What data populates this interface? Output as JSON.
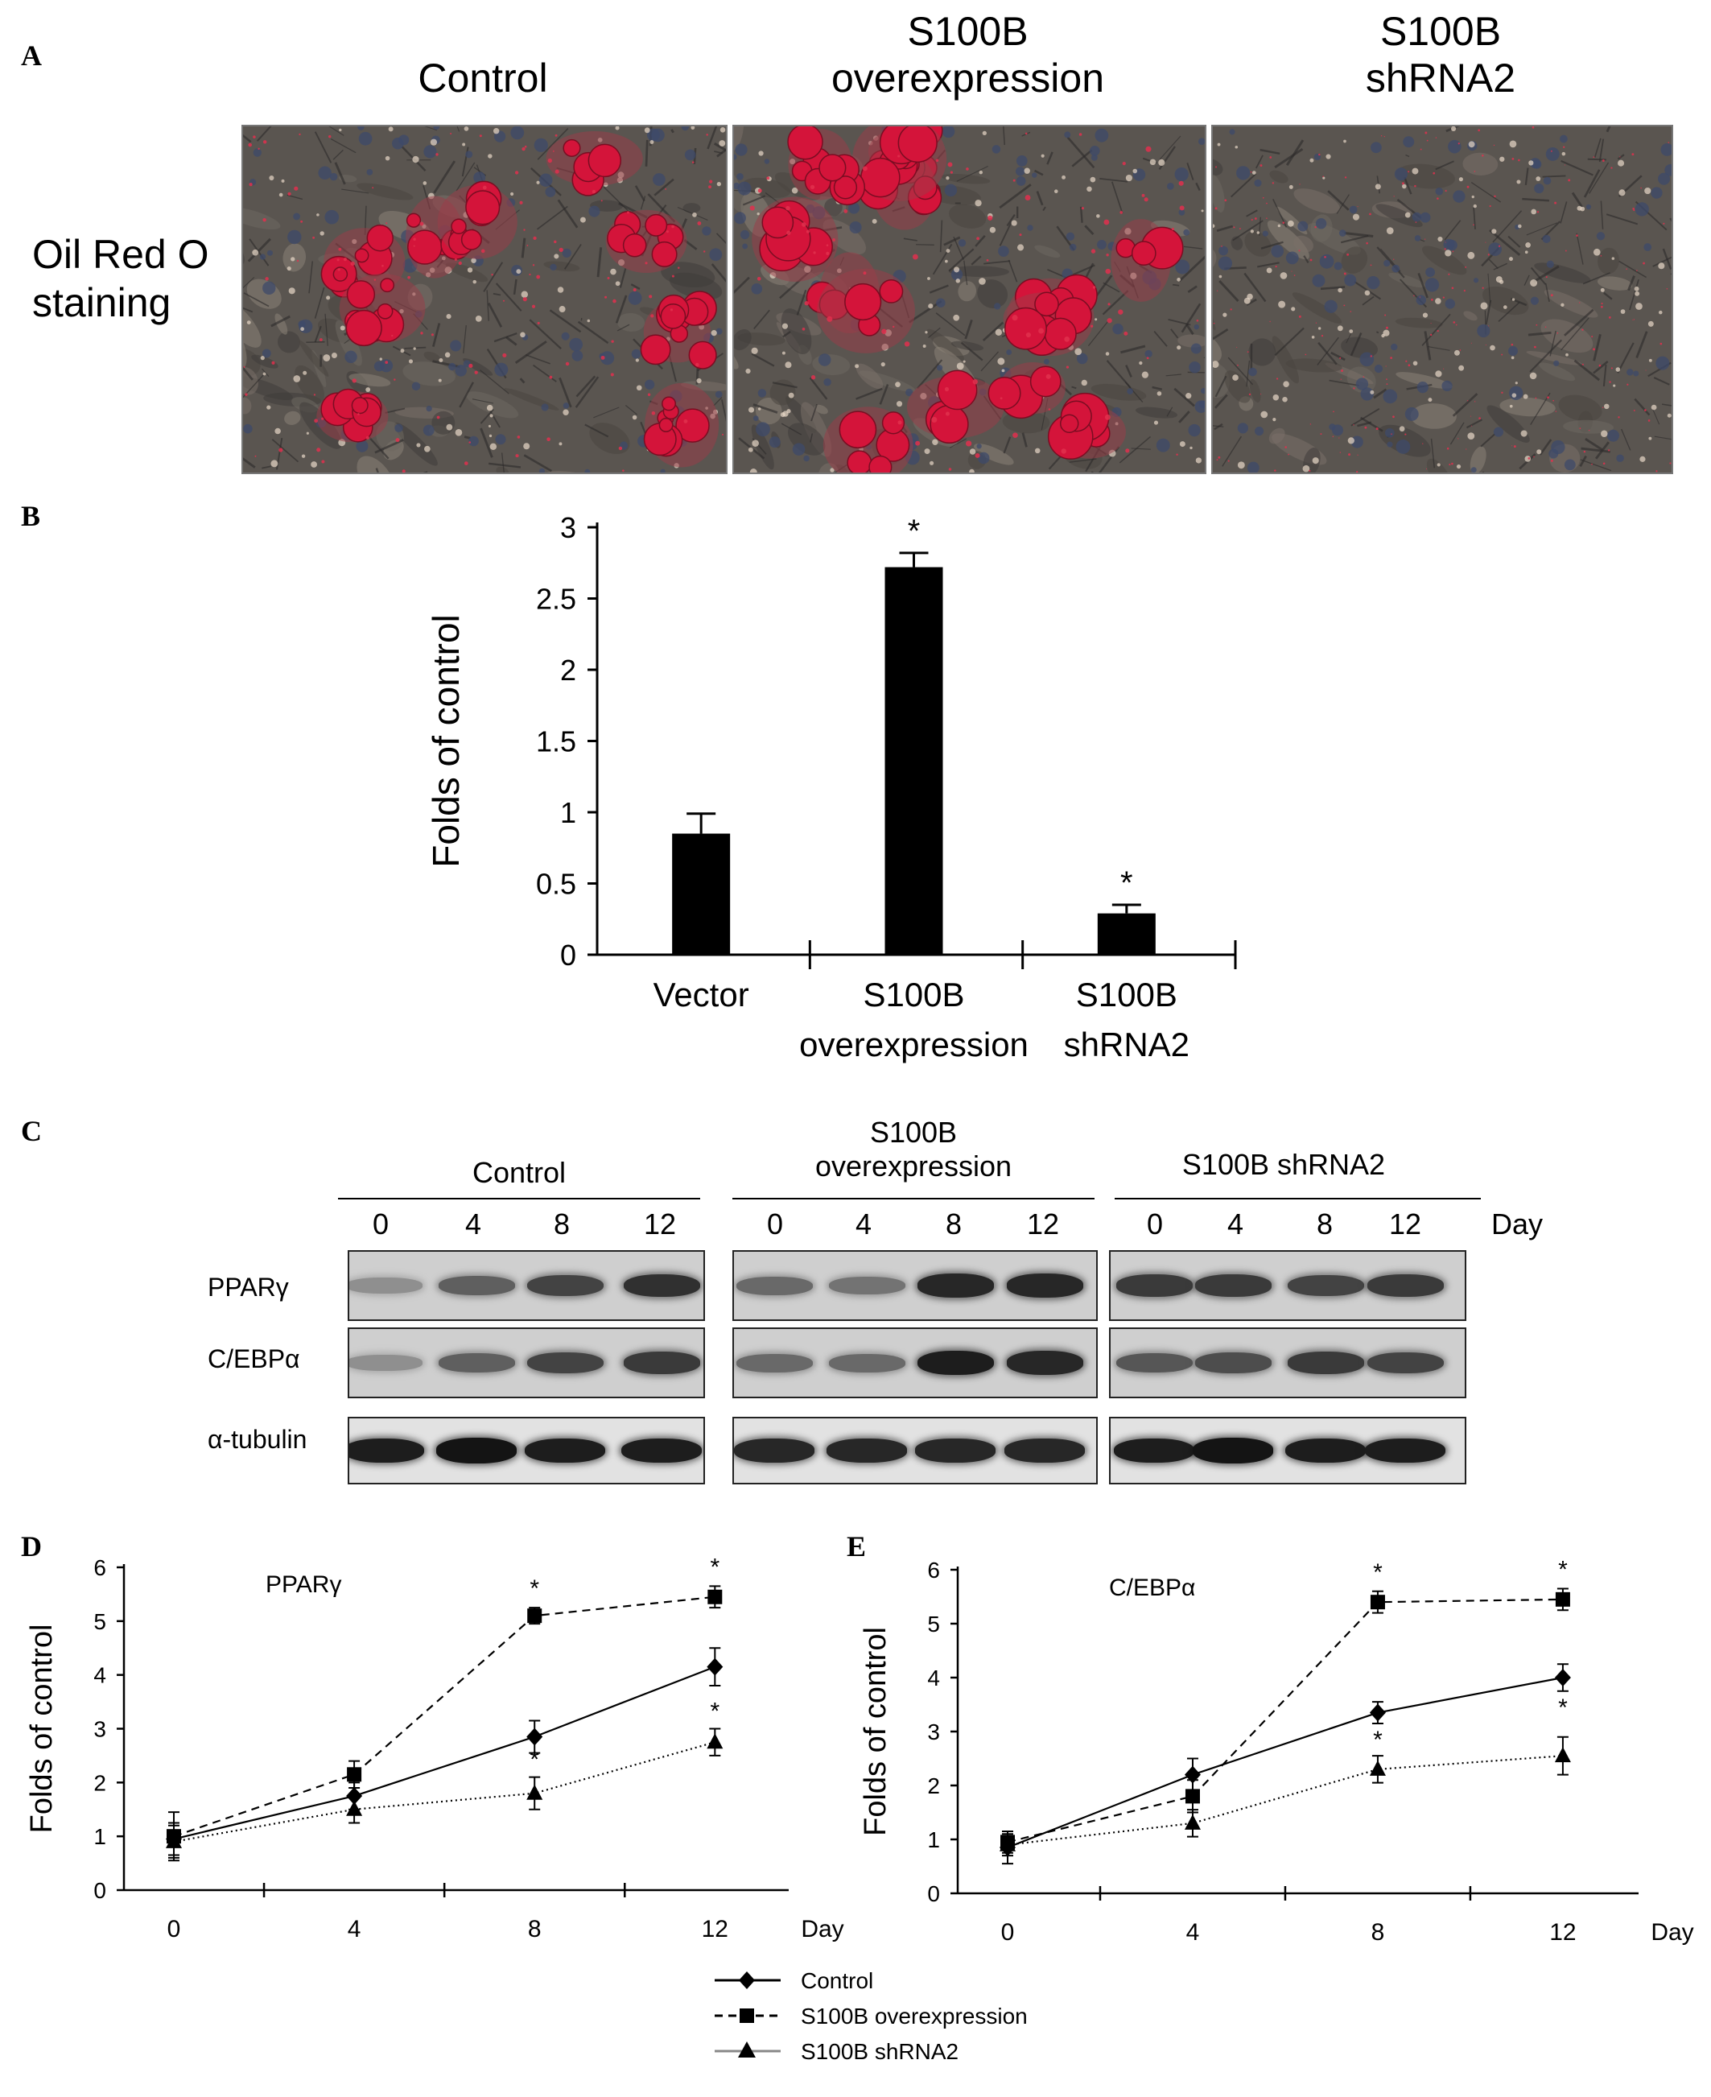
{
  "panel_labels": {
    "a": "A",
    "b": "B",
    "c": "C",
    "d": "D",
    "e": "E"
  },
  "panel_a": {
    "row_label": "Oil Red O\nstaining",
    "columns": [
      "Control",
      "S100B\noverexpression",
      "S100B\nshRNA2"
    ]
  },
  "panel_b": {
    "chart_data": {
      "type": "bar",
      "categories": [
        "Vector",
        "S100B overexpression",
        "S100B shRNA2"
      ],
      "values": [
        0.85,
        2.72,
        0.29
      ],
      "errors": [
        0.14,
        0.1,
        0.06
      ],
      "significance": [
        "",
        "*",
        "*"
      ],
      "ylabel": "Folds of control",
      "ylim": [
        0,
        3
      ],
      "yticks": [
        "0",
        "0.5",
        "1",
        "1.5",
        "2",
        "2.5",
        "3"
      ],
      "ytick_values": [
        0,
        0.5,
        1,
        1.5,
        2,
        2.5,
        3
      ],
      "category_labels": [
        "Vector",
        "S100B\noverexpression",
        "S100B\nshRNA2"
      ],
      "bar_color": "#000000"
    }
  },
  "panel_c": {
    "groups": [
      "Control",
      "S100B\noverexpression",
      "S100B shRNA2"
    ],
    "days": [
      "0",
      "4",
      "8",
      "12"
    ],
    "day_label": "Day",
    "rows": [
      "PPARγ",
      "C/EBPα",
      "α-tubulin"
    ],
    "band_intensity": [
      [
        [
          0.3,
          0.55,
          0.7,
          0.8
        ],
        [
          0.5,
          0.45,
          0.85,
          0.85
        ],
        [
          0.75,
          0.75,
          0.7,
          0.75
        ]
      ],
      [
        [
          0.3,
          0.55,
          0.7,
          0.75
        ],
        [
          0.5,
          0.5,
          0.9,
          0.85
        ],
        [
          0.6,
          0.65,
          0.75,
          0.7
        ]
      ],
      [
        [
          0.9,
          0.95,
          0.9,
          0.9
        ],
        [
          0.85,
          0.85,
          0.85,
          0.85
        ],
        [
          0.9,
          0.95,
          0.9,
          0.9
        ]
      ]
    ]
  },
  "panel_d": {
    "chart_data": {
      "type": "line",
      "title": "PPARγ",
      "x": [
        0,
        4,
        8,
        12
      ],
      "xticks": [
        "0",
        "4",
        "8",
        "12"
      ],
      "xlabel": "Day",
      "ylabel": "Folds of control",
      "ylim": [
        0,
        6
      ],
      "yticks": [
        "0",
        "1",
        "2",
        "3",
        "4",
        "5",
        "6"
      ],
      "series": [
        {
          "name": "Control",
          "values": [
            0.95,
            1.75,
            2.85,
            4.15
          ],
          "errors": [
            0.3,
            0.25,
            0.3,
            0.35
          ],
          "marker": "diamond",
          "dash": "solid",
          "stars": [
            "",
            "",
            "",
            ""
          ]
        },
        {
          "name": "S100B overexpression",
          "values": [
            1.0,
            2.15,
            5.1,
            5.45
          ],
          "errors": [
            0.45,
            0.25,
            0.15,
            0.2
          ],
          "marker": "square",
          "dash": "dashed",
          "stars": [
            "",
            "",
            "*",
            "*"
          ]
        },
        {
          "name": "S100B shRNA2",
          "values": [
            0.9,
            1.5,
            1.8,
            2.75
          ],
          "errors": [
            0.3,
            0.25,
            0.3,
            0.25
          ],
          "marker": "triangle",
          "dash": "dotted",
          "stars": [
            "",
            "",
            "*",
            "*"
          ]
        }
      ]
    }
  },
  "panel_e": {
    "chart_data": {
      "type": "line",
      "title": "C/EBPα",
      "x": [
        0,
        4,
        8,
        12
      ],
      "xticks": [
        "0",
        "4",
        "8",
        "12"
      ],
      "xlabel": "Day",
      "ylabel": "Folds of control",
      "ylim": [
        0,
        6
      ],
      "yticks": [
        "0",
        "1",
        "2",
        "3",
        "4",
        "5",
        "6"
      ],
      "series": [
        {
          "name": "Control",
          "values": [
            0.85,
            2.2,
            3.35,
            4.0
          ],
          "errors": [
            0.3,
            0.3,
            0.2,
            0.25
          ],
          "marker": "diamond",
          "dash": "solid",
          "stars": [
            "",
            "",
            "*",
            "*"
          ]
        },
        {
          "name": "S100B overexpression",
          "values": [
            0.95,
            1.8,
            5.4,
            5.45
          ],
          "errors": [
            0.2,
            0.3,
            0.2,
            0.2
          ],
          "marker": "square",
          "dash": "dashed",
          "stars": [
            "",
            "",
            "*",
            "*"
          ]
        },
        {
          "name": "S100B shRNA2",
          "values": [
            0.9,
            1.3,
            2.3,
            2.55
          ],
          "errors": [
            0.2,
            0.25,
            0.25,
            0.35
          ],
          "marker": "triangle",
          "dash": "dotted",
          "stars": [
            "",
            "",
            "",
            ""
          ]
        }
      ]
    }
  },
  "legend": {
    "entries": [
      "Control",
      "S100B overexpression",
      "S100B shRNA2"
    ]
  }
}
